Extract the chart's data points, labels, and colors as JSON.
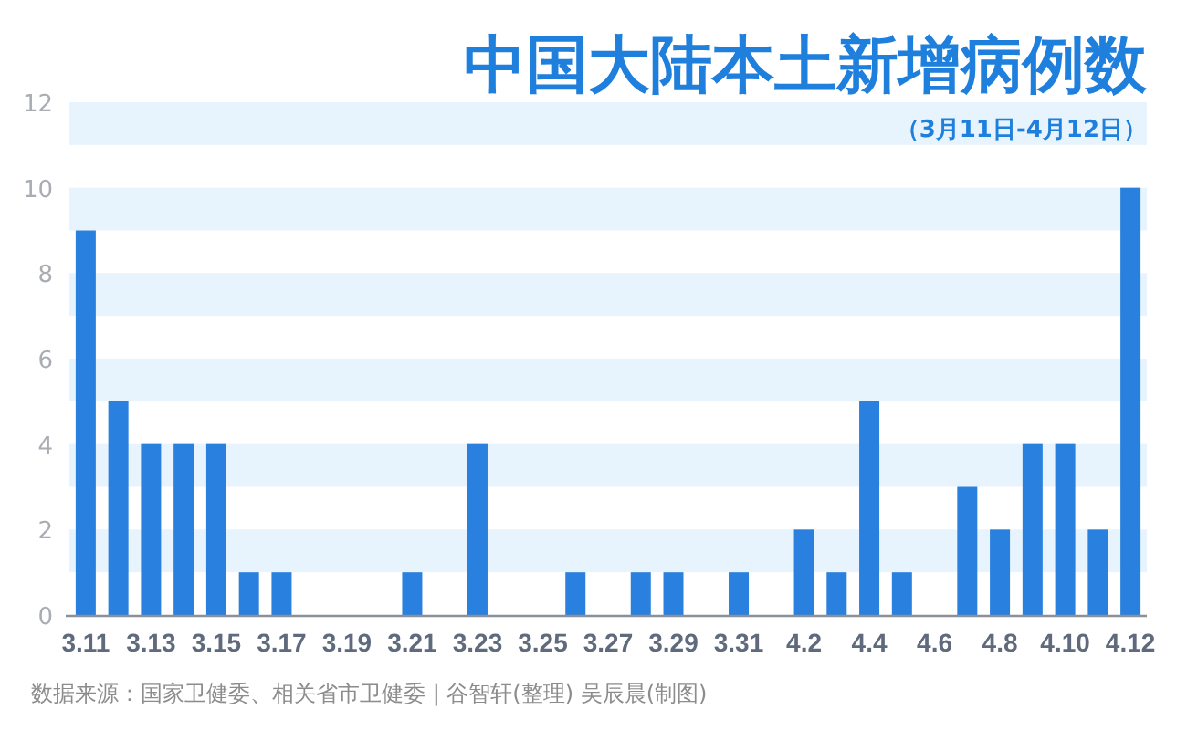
{
  "chart_data": {
    "type": "bar",
    "title": "中国大陆本土新增病例数",
    "subtitle": "（3月11日-4月12日）",
    "categories": [
      "3.11",
      null,
      "3.13",
      null,
      "3.15",
      null,
      "3.17",
      null,
      "3.19",
      null,
      "3.21",
      null,
      "3.23",
      null,
      "3.25",
      null,
      "3.27",
      null,
      "3.29",
      null,
      "3.31",
      null,
      "4.2",
      null,
      "4.4",
      null,
      "4.6",
      null,
      "4.8",
      null,
      "4.10",
      null,
      "4.12"
    ],
    "values": [
      9,
      5,
      4,
      4,
      4,
      1,
      1,
      0,
      0,
      0,
      1,
      0,
      4,
      0,
      0,
      1,
      0,
      1,
      1,
      0,
      1,
      0,
      2,
      1,
      5,
      1,
      0,
      3,
      2,
      4,
      4,
      2,
      10
    ],
    "color": "#2a80de",
    "ylim": [
      0,
      12
    ],
    "yticks": [
      0,
      2,
      4,
      6,
      8,
      10,
      12
    ],
    "bands": [
      {
        "axis": "y",
        "from": 1,
        "to": 2,
        "color": "#e8f4fd"
      },
      {
        "axis": "y",
        "from": 3,
        "to": 4,
        "color": "#e8f4fd"
      },
      {
        "axis": "y",
        "from": 5,
        "to": 6,
        "color": "#e8f4fd"
      },
      {
        "axis": "y",
        "from": 7,
        "to": 8,
        "color": "#e8f4fd"
      },
      {
        "axis": "y",
        "from": 9,
        "to": 10,
        "color": "#e8f4fd"
      },
      {
        "axis": "y",
        "from": 11,
        "to": 12,
        "color": "#e8f4fd"
      }
    ],
    "annotations": [
      "数据来源：国家卫健委、相关省市卫健委  |  谷智轩(整理)  吴辰晨(制图)"
    ]
  }
}
